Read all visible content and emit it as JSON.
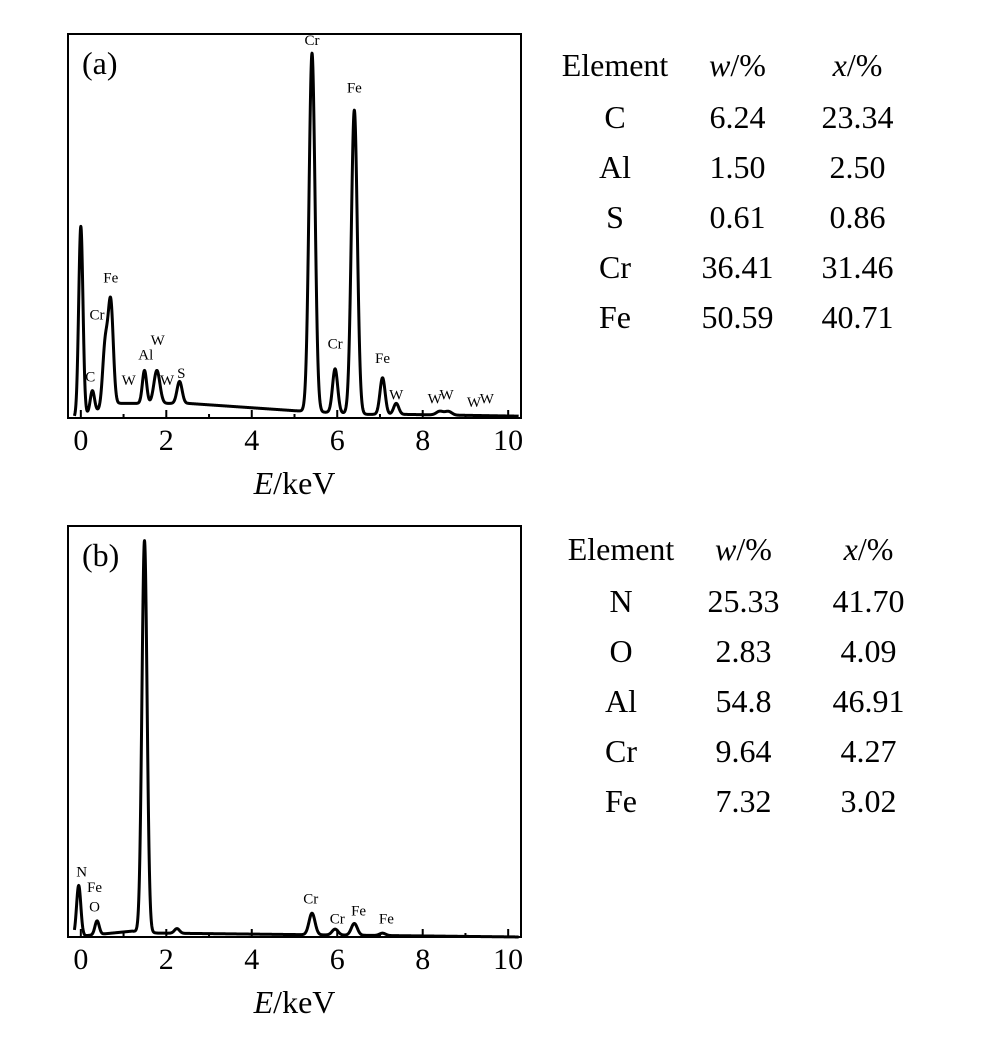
{
  "chart_data": [
    {
      "type": "line",
      "panel_label": "(a)",
      "xlabel_var": "E",
      "xlabel_unit": "/keV",
      "xlim": [
        -0.3,
        10.3
      ],
      "xticks": [
        0,
        2,
        4,
        6,
        8,
        10
      ],
      "ylim": [
        0,
        1.05
      ],
      "grid": false,
      "series": [
        {
          "peaks": [
            {
              "x": 0.0,
              "h": 0.52,
              "w": 0.05
            },
            {
              "x": 0.27,
              "h": 0.06,
              "w": 0.05
            },
            {
              "x": 0.57,
              "h": 0.17,
              "w": 0.06
            },
            {
              "x": 0.7,
              "h": 0.28,
              "w": 0.06
            },
            {
              "x": 1.49,
              "h": 0.09,
              "w": 0.05
            },
            {
              "x": 1.78,
              "h": 0.09,
              "w": 0.07
            },
            {
              "x": 2.31,
              "h": 0.06,
              "w": 0.06
            },
            {
              "x": 5.41,
              "h": 0.98,
              "w": 0.07
            },
            {
              "x": 5.95,
              "h": 0.12,
              "w": 0.06
            },
            {
              "x": 6.4,
              "h": 0.83,
              "w": 0.07
            },
            {
              "x": 7.06,
              "h": 0.1,
              "w": 0.06
            },
            {
              "x": 7.38,
              "h": 0.03,
              "w": 0.06
            },
            {
              "x": 8.4,
              "h": 0.01,
              "w": 0.08
            },
            {
              "x": 8.6,
              "h": 0.01,
              "w": 0.08
            }
          ],
          "background": [
            [
              -0.1,
              0.0
            ],
            [
              0.9,
              0.04
            ],
            [
              2.5,
              0.04
            ],
            [
              5.0,
              0.02
            ],
            [
              6.7,
              0.01
            ],
            [
              7.5,
              0.01
            ],
            [
              10.3,
              0.005
            ]
          ]
        }
      ],
      "annotations": [
        {
          "text": "Cr",
          "x": 5.41,
          "y": 1.02
        },
        {
          "text": "Fe",
          "x": 6.4,
          "y": 0.89
        },
        {
          "text": "Fe",
          "x": 0.7,
          "y": 0.37
        },
        {
          "text": "Cr",
          "x": 0.38,
          "y": 0.27
        },
        {
          "text": "C",
          "x": 0.22,
          "y": 0.1
        },
        {
          "text": "Al",
          "x": 1.52,
          "y": 0.16
        },
        {
          "text": "W",
          "x": 1.8,
          "y": 0.2
        },
        {
          "text": "W",
          "x": 1.12,
          "y": 0.09
        },
        {
          "text": "W",
          "x": 2.02,
          "y": 0.09
        },
        {
          "text": "S",
          "x": 2.35,
          "y": 0.11
        },
        {
          "text": "Cr",
          "x": 5.95,
          "y": 0.19
        },
        {
          "text": "Fe",
          "x": 7.06,
          "y": 0.15
        },
        {
          "text": "W",
          "x": 7.38,
          "y": 0.05
        },
        {
          "text": "W",
          "x": 8.28,
          "y": 0.04
        },
        {
          "text": "W",
          "x": 8.56,
          "y": 0.05
        },
        {
          "text": "W",
          "x": 9.2,
          "y": 0.03
        },
        {
          "text": "W",
          "x": 9.5,
          "y": 0.04
        }
      ]
    },
    {
      "type": "line",
      "panel_label": "(b)",
      "xlabel_var": "E",
      "xlabel_unit": "/keV",
      "xlim": [
        -0.3,
        10.3
      ],
      "xticks": [
        0,
        2,
        4,
        6,
        8,
        10
      ],
      "ylim": [
        0,
        1.05
      ],
      "grid": false,
      "series": [
        {
          "peaks": [
            {
              "x": -0.05,
              "h": 0.13,
              "w": 0.05
            },
            {
              "x": 0.38,
              "h": 0.035,
              "w": 0.05
            },
            {
              "x": 1.49,
              "h": 1.0,
              "w": 0.06
            },
            {
              "x": 2.25,
              "h": 0.012,
              "w": 0.06
            },
            {
              "x": 5.41,
              "h": 0.055,
              "w": 0.07
            },
            {
              "x": 5.95,
              "h": 0.015,
              "w": 0.07
            },
            {
              "x": 6.4,
              "h": 0.03,
              "w": 0.07
            },
            {
              "x": 7.06,
              "h": 0.006,
              "w": 0.07
            }
          ],
          "background": [
            [
              -0.2,
              0.0
            ],
            [
              1.2,
              0.015
            ],
            [
              1.8,
              0.01
            ],
            [
              10.3,
              0.0
            ]
          ]
        }
      ],
      "annotations": [
        {
          "text": "N",
          "x": 0.02,
          "y": 0.155
        },
        {
          "text": "Fe",
          "x": 0.32,
          "y": 0.115
        },
        {
          "text": "O",
          "x": 0.32,
          "y": 0.065
        },
        {
          "text": "Cr",
          "x": 5.38,
          "y": 0.085
        },
        {
          "text": "Cr",
          "x": 6.0,
          "y": 0.035
        },
        {
          "text": "Fe",
          "x": 6.5,
          "y": 0.055
        },
        {
          "text": "Fe",
          "x": 7.15,
          "y": 0.035
        }
      ]
    }
  ],
  "tables": [
    {
      "headers": {
        "element": "Element",
        "w_var": "w",
        "x_var": "x",
        "unit": "/%"
      },
      "rows": [
        {
          "element": "C",
          "w": "6.24",
          "x": "23.34"
        },
        {
          "element": "Al",
          "w": "1.50",
          "x": "2.50"
        },
        {
          "element": "S",
          "w": "0.61",
          "x": "0.86"
        },
        {
          "element": "Cr",
          "w": "36.41",
          "x": "31.46"
        },
        {
          "element": "Fe",
          "w": "50.59",
          "x": "40.71"
        }
      ]
    },
    {
      "headers": {
        "element": "Element",
        "w_var": "w",
        "x_var": "x",
        "unit": "/%"
      },
      "rows": [
        {
          "element": "N",
          "w": "25.33",
          "x": "41.70"
        },
        {
          "element": "O",
          "w": "2.83",
          "x": "4.09"
        },
        {
          "element": "Al",
          "w": "54.8",
          "x": "46.91"
        },
        {
          "element": "Cr",
          "w": "9.64",
          "x": "4.27"
        },
        {
          "element": "Fe",
          "w": "7.32",
          "x": "3.02"
        }
      ]
    }
  ]
}
